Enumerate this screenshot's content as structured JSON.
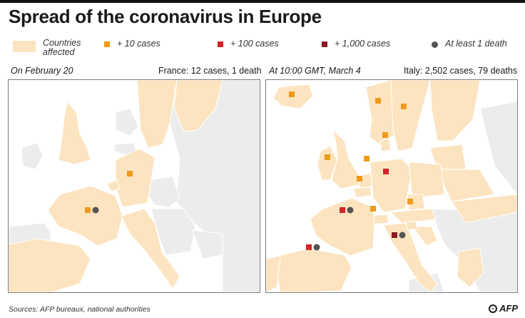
{
  "title": "Spread of the coronavirus in Europe",
  "colors": {
    "land_affected": "#fce4c0",
    "land_other": "#ececec",
    "sea": "#ffffff",
    "cases_10": "#ee9a1d",
    "cases_100": "#d8232a",
    "cases_1000": "#8e1b22",
    "death": "#555555"
  },
  "legend": {
    "countries_affected": "Countries\naffected",
    "cases_10": "+ 10 cases",
    "cases_100": "+ 100 cases",
    "cases_1000": "+ 1,000 cases",
    "death": "At least 1 death"
  },
  "maps": [
    {
      "date_label": "On February 20",
      "summary": "France: 12 cases, 1 death",
      "affected_countries": [
        "France",
        "Germany",
        "Great Britain",
        "Italy",
        "Spain",
        "Belgium",
        "Sweden",
        "Finland"
      ],
      "markers": [
        {
          "country": "Germany",
          "level": "10",
          "death": false
        },
        {
          "country": "France",
          "level": "10",
          "death": true
        }
      ]
    },
    {
      "date_label": "At 10:00 GMT, March 4",
      "summary": "Italy: 2,502 cases, 79 deaths",
      "affected_countries": [
        "Iceland",
        "Norway",
        "Sweden",
        "Finland",
        "Denmark",
        "Great Britain",
        "Ireland",
        "Netherlands",
        "Belgium",
        "Germany",
        "France",
        "Switzerland",
        "Austria",
        "Italy",
        "Spain",
        "Portugal",
        "Poland",
        "Czechia",
        "Baltic states",
        "Belarus",
        "Ukraine",
        "Croatia",
        "Slovenia",
        "Greece"
      ],
      "markers": [
        {
          "country": "Iceland",
          "level": "10",
          "death": false
        },
        {
          "country": "Norway",
          "level": "10",
          "death": false
        },
        {
          "country": "Sweden",
          "level": "10",
          "death": false
        },
        {
          "country": "Denmark",
          "level": "10",
          "death": false
        },
        {
          "country": "Great Britain",
          "level": "10",
          "death": false
        },
        {
          "country": "Netherlands",
          "level": "10",
          "death": false
        },
        {
          "country": "Belgium",
          "level": "10",
          "death": false
        },
        {
          "country": "Germany",
          "level": "100",
          "death": false
        },
        {
          "country": "Switzerland",
          "level": "10",
          "death": false
        },
        {
          "country": "Austria",
          "level": "10",
          "death": false
        },
        {
          "country": "France",
          "level": "100",
          "death": true
        },
        {
          "country": "Italy",
          "level": "1000",
          "death": true
        },
        {
          "country": "Spain",
          "level": "100",
          "death": true
        }
      ]
    }
  ],
  "footer": "Sources: AFP bureaux, national authorities",
  "logo": "AFP"
}
